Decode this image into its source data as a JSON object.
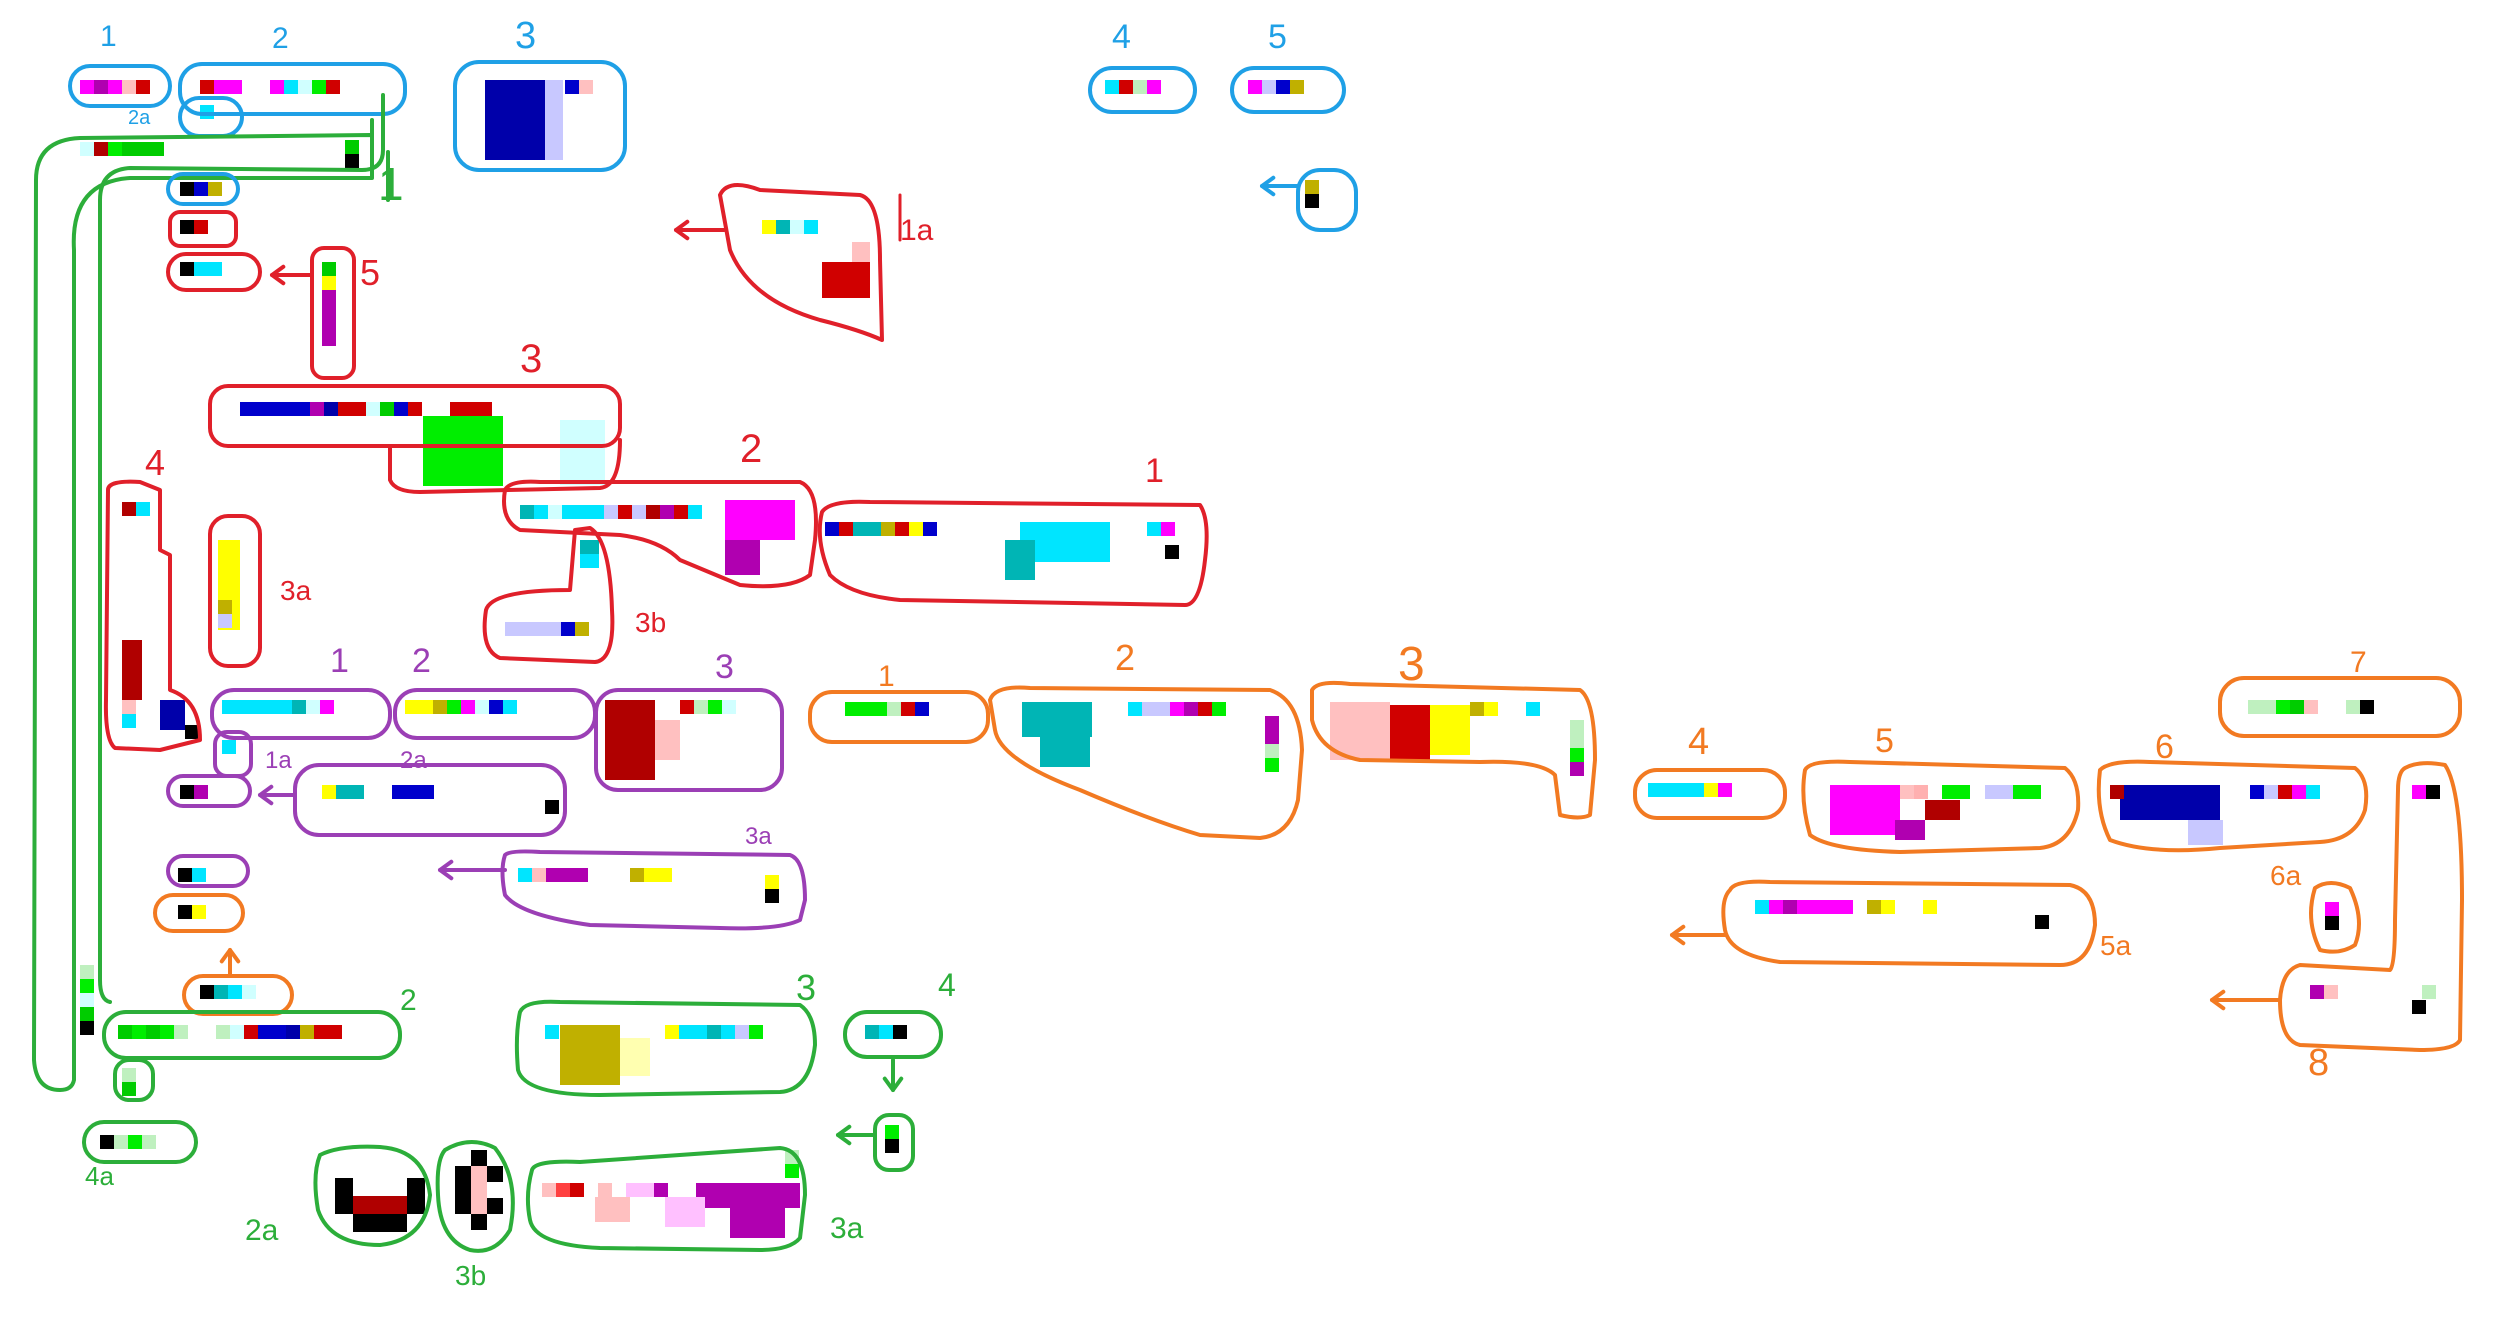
{
  "colors": {
    "blue": "#1fa0e6",
    "red": "#e0202a",
    "purple": "#9b3fb5",
    "orange": "#f27a22",
    "green": "#2cae3a"
  },
  "labels": {
    "b1": "1",
    "b2": "2",
    "b2a": "2a",
    "b3": "3",
    "b4": "4",
    "b5": "5",
    "r1a": "1a",
    "r5": "5",
    "r3": "3",
    "r2": "2",
    "r1": "1",
    "r4": "4",
    "r3a": "3a",
    "r3b": "3b",
    "p1": "1",
    "p2": "2",
    "p3": "3",
    "p1a": "1a",
    "p2a": "2a",
    "p3a": "3a",
    "o1": "1",
    "o2": "2",
    "o3": "3",
    "o4": "4",
    "o5": "5",
    "o6": "6",
    "o7": "7",
    "o5a": "5a",
    "o6a": "6a",
    "o8": "8",
    "g1": "1",
    "g2": "2",
    "g3": "3",
    "g4": "4",
    "g2a": "2a",
    "g3b": "3b",
    "g3a": "3a",
    "g4a": "4a"
  }
}
